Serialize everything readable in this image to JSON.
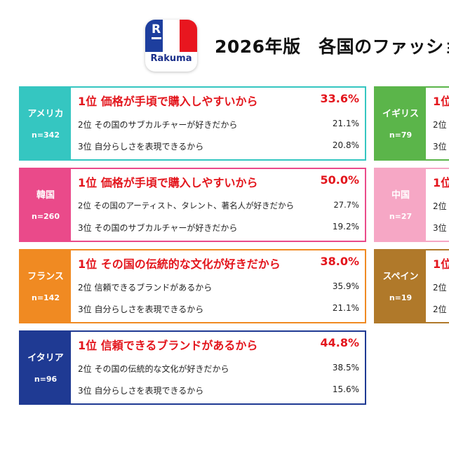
{
  "logo": {
    "text": "Rakuma",
    "mark": "R",
    "colors": {
      "blue": "#1d3e9e",
      "white": "#ffffff",
      "red": "#e8161f"
    }
  },
  "title": "2026年版　各国のファッショ",
  "cards": [
    {
      "country": "アメリカ",
      "n": "n=342",
      "color": "#35c6c1",
      "rows": [
        {
          "label": "1位  価格が手頃で購入しやすいから",
          "value": "33.6%"
        },
        {
          "label": "2位  その国のサブカルチャーが好きだから",
          "value": "21.1%"
        },
        {
          "label": "3位  自分らしさを表現できるから",
          "value": "20.8%"
        }
      ]
    },
    {
      "country": "韓国",
      "n": "n=260",
      "color": "#ea4a8a",
      "rows": [
        {
          "label": "1位  価格が手頃で購入しやすいから",
          "value": "50.0%"
        },
        {
          "label": "2位  その国のアーティスト、タレント、著名人が好きだから",
          "value": "27.7%"
        },
        {
          "label": "3位  その国のサブカルチャーが好きだから",
          "value": "19.2%"
        }
      ]
    },
    {
      "country": "フランス",
      "n": "n=142",
      "color": "#f08a22",
      "rows": [
        {
          "label": "1位  その国の伝統的な文化が好きだから",
          "value": "38.0%"
        },
        {
          "label": "2位  信頼できるブランドがあるから",
          "value": "35.9%"
        },
        {
          "label": "3位  自分らしさを表現できるから",
          "value": "21.1%"
        }
      ]
    },
    {
      "country": "イタリア",
      "n": "n=96",
      "color": "#1f3a93",
      "rows": [
        {
          "label": "1位  信頼できるブランドがあるから",
          "value": "44.8%"
        },
        {
          "label": "2位  その国の伝統的な文化が好きだから",
          "value": "38.5%"
        },
        {
          "label": "3位  自分らしさを表現できるから",
          "value": "15.6%"
        }
      ]
    },
    {
      "country": "イギリス",
      "n": "n=79",
      "color": "#5bb54a",
      "rows": [
        {
          "label": "1位",
          "value": ""
        },
        {
          "label": "2位",
          "value": ""
        },
        {
          "label": "3位",
          "value": ""
        }
      ]
    },
    {
      "country": "中国",
      "n": "n=27",
      "color": "#f6a7c5",
      "rows": [
        {
          "label": "1位",
          "value": ""
        },
        {
          "label": "2位",
          "value": ""
        },
        {
          "label": "3位",
          "value": ""
        }
      ]
    },
    {
      "country": "スペイン",
      "n": "n=19",
      "color": "#b0792a",
      "rows": [
        {
          "label": "1位",
          "value": ""
        },
        {
          "label": "2位",
          "value": ""
        },
        {
          "label": "2位",
          "value": ""
        }
      ]
    }
  ]
}
